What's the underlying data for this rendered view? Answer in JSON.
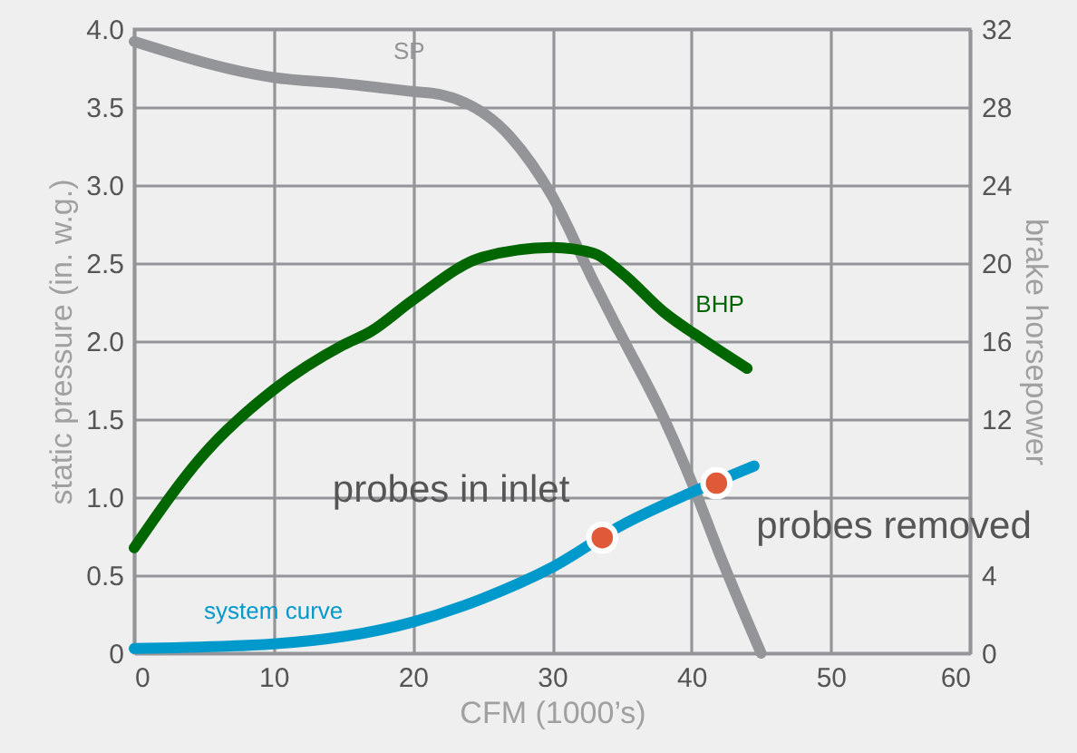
{
  "chart_data": {
    "type": "line",
    "xlabel": "CFM (1000’s)",
    "ylabel": "static pressure (in. w.g.)",
    "y2label": "brake horsepower",
    "xlim": [
      0,
      60
    ],
    "xticks": [
      0,
      10,
      20,
      30,
      40,
      50,
      60
    ],
    "ylim": [
      0,
      4
    ],
    "yticks": [
      0,
      0.5,
      {
        "value": 1,
        "label": "1.0"
      },
      1.5,
      {
        "value": 2,
        "label": "2.0"
      },
      2.5,
      {
        "value": 3,
        "label": "3.0"
      },
      3.5,
      {
        "value": 4,
        "label": "4.0"
      }
    ],
    "y2lim": [
      0,
      32
    ],
    "y2ticks": [
      0,
      4,
      12,
      16,
      20,
      24,
      28,
      32
    ],
    "grid": true,
    "line_style": "solid",
    "series": [
      {
        "name": "SP",
        "type": "line",
        "color": "#939598",
        "x": [
          0,
          10,
          15,
          20,
          22,
          27,
          30,
          33,
          35,
          38,
          40,
          42,
          45
        ],
        "values": [
          3.92,
          3.69,
          3.65,
          3.6,
          3.58,
          3.31,
          2.93,
          2.38,
          2.03,
          1.51,
          1.1,
          0.64,
          0
        ]
      },
      {
        "name": "BHP",
        "type": "line",
        "axis": "y2",
        "color": "#006600",
        "x": [
          0,
          5,
          10,
          15,
          17,
          20,
          25,
          30,
          33,
          35,
          38,
          41,
          44
        ],
        "values": [
          5.4,
          10.2,
          13.5,
          15.8,
          16.5,
          18.1,
          20.3,
          20.8,
          20.5,
          19.5,
          17.5,
          16,
          14.6
        ]
      },
      {
        "name": "system curve",
        "type": "line",
        "color": "#0099cc",
        "x": [
          0,
          10,
          20,
          25,
          30,
          35,
          40,
          44.5
        ],
        "values": [
          0.03,
          0.06,
          0.2,
          0.35,
          0.55,
          0.82,
          1.03,
          1.2
        ]
      },
      {
        "type": "scatter",
        "marker": "circle",
        "color": "#e05a3a",
        "x": [
          33.6,
          41.8
        ],
        "values": [
          0.74,
          1.09
        ]
      }
    ],
    "annotations": [
      {
        "text": "probes in inlet",
        "x": 33.6,
        "y": 0.74
      },
      {
        "text": "probes removed",
        "x": 41.8,
        "y": 1.09
      }
    ]
  }
}
